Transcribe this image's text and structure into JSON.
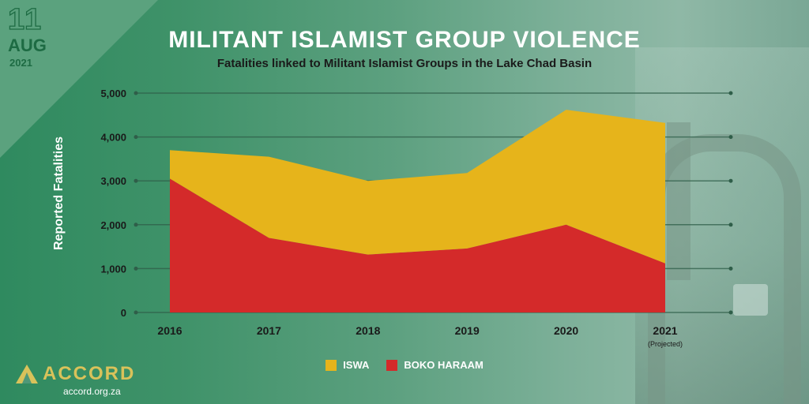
{
  "date": {
    "day": "11",
    "month": "AUG",
    "year": "2021"
  },
  "brand": {
    "name": "ACCORD",
    "url": "accord.org.za"
  },
  "chart_data": {
    "type": "area",
    "stacked": true,
    "title": "MILITANT ISLAMIST GROUP VIOLENCE",
    "subtitle": "Fatalities linked to Militant Islamist Groups in the Lake Chad Basin",
    "ylabel": "Reported Fatalities",
    "xlabel": "",
    "categories": [
      "2016",
      "2017",
      "2018",
      "2019",
      "2020",
      "2021"
    ],
    "x_notes": [
      "",
      "",
      "",
      "",
      "",
      "(Projected)"
    ],
    "y_ticks": [
      "0",
      "1,000",
      "2,000",
      "3,000",
      "4,000",
      "5,000"
    ],
    "y_tick_values": [
      0,
      1000,
      2000,
      3000,
      4000,
      5000
    ],
    "ylim": [
      0,
      5000
    ],
    "grid": true,
    "legend_position": "bottom",
    "series": [
      {
        "name": "BOKO HARAAM",
        "color": "#d42a2a",
        "values": [
          3050,
          1700,
          1320,
          1460,
          2000,
          1120
        ]
      },
      {
        "name": "ISWA",
        "color": "#e6b41b",
        "values": [
          650,
          1850,
          1680,
          1720,
          2620,
          3200
        ]
      }
    ],
    "legend": [
      {
        "name": "ISWA",
        "color": "#e6b41b"
      },
      {
        "name": "BOKO HARAAM",
        "color": "#d42a2a"
      }
    ]
  }
}
